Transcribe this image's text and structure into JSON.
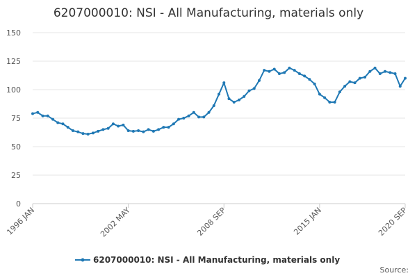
{
  "chart_data": {
    "type": "line",
    "title": "6207000010: NSI - All Manufacturing, materials only",
    "source": "Source:",
    "categories": [
      "1996 JAN",
      null,
      null,
      null,
      null,
      null,
      null,
      null,
      null,
      null,
      null,
      null,
      null,
      null,
      null,
      null,
      null,
      null,
      null,
      "2002 MAY",
      null,
      null,
      null,
      null,
      null,
      null,
      null,
      null,
      null,
      null,
      null,
      null,
      null,
      null,
      null,
      null,
      null,
      null,
      "2008 SEP",
      null,
      null,
      null,
      null,
      null,
      null,
      null,
      null,
      null,
      null,
      null,
      null,
      null,
      null,
      null,
      null,
      null,
      null,
      "2015 JAN",
      null,
      null,
      null,
      null,
      null,
      null,
      null,
      null,
      null,
      null,
      null,
      null,
      null,
      null,
      null,
      null,
      "2020 SEP"
    ],
    "series": [
      {
        "name": "6207000010: NSI - All Manufacturing, materials only",
        "color": "#1f78b4",
        "values": [
          79,
          80,
          77,
          77,
          74,
          71,
          70,
          67,
          64,
          63,
          61.5,
          61,
          62,
          63.5,
          65,
          66,
          70,
          68,
          69,
          64,
          63.5,
          64,
          63,
          65,
          63.5,
          65,
          67,
          67,
          70,
          74,
          75,
          77,
          80,
          76,
          76,
          80,
          86,
          96,
          106,
          92,
          89,
          91,
          94,
          99,
          101,
          108,
          117,
          116,
          118,
          114,
          115,
          119,
          117,
          114,
          112,
          109,
          105,
          96,
          93,
          89,
          89,
          98,
          103,
          107,
          106,
          110,
          111,
          116,
          119,
          114,
          116,
          115,
          114,
          103,
          110
        ]
      }
    ],
    "ylim": [
      0,
      150
    ],
    "yticks": [
      0,
      25,
      50,
      75,
      100,
      125,
      150
    ],
    "grid": true
  }
}
